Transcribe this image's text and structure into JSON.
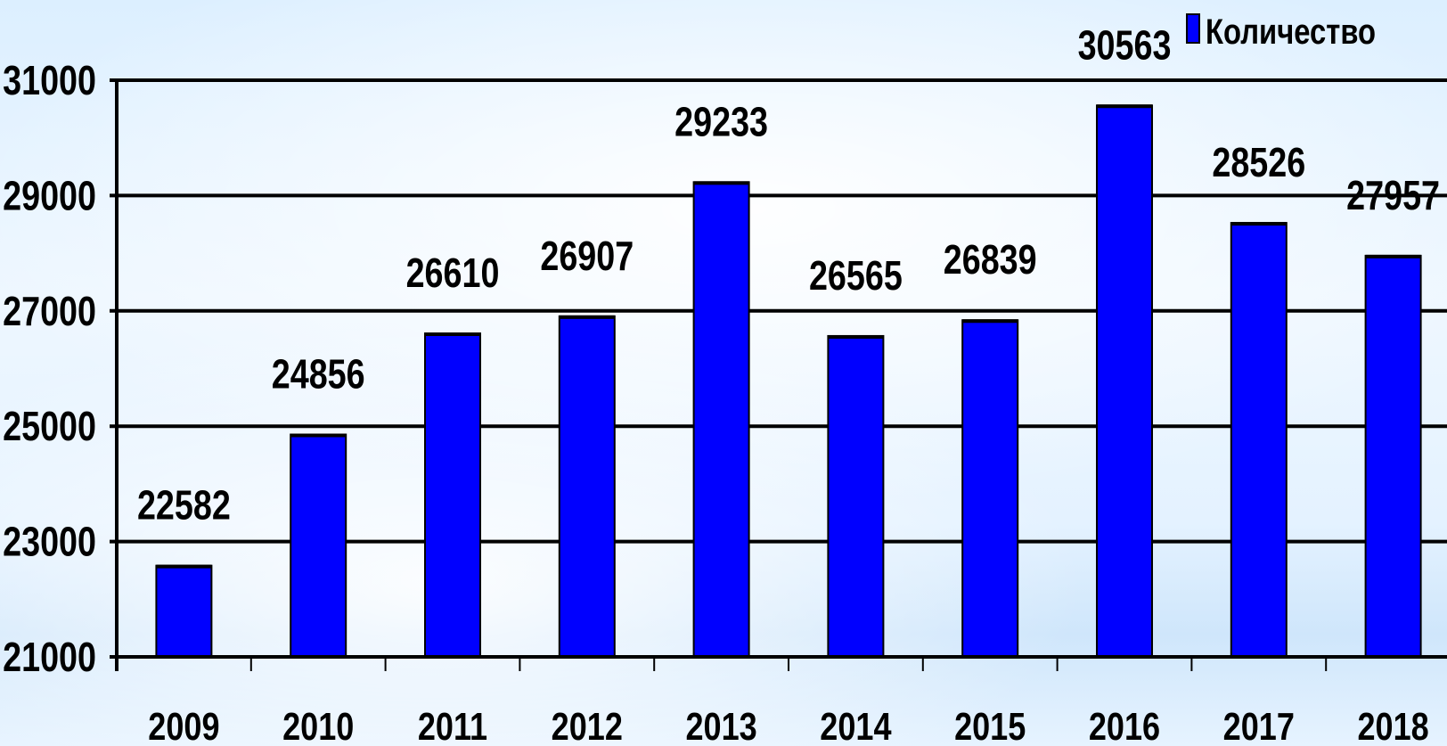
{
  "chart_data": {
    "type": "bar",
    "categories": [
      "2009",
      "2010",
      "2011",
      "2012",
      "2013",
      "2014",
      "2015",
      "2016",
      "2017",
      "2018"
    ],
    "series": [
      {
        "name": "Количество",
        "values": [
          22582,
          24856,
          26610,
          26907,
          29233,
          26565,
          26839,
          30563,
          28526,
          27957
        ],
        "color": "#0000ff"
      }
    ],
    "data_labels": [
      "22582",
      "24856",
      "26610",
      "26907",
      "29233",
      "26565",
      "26839",
      "30563",
      "28526",
      "27957"
    ],
    "y_ticks": [
      "21000",
      "23000",
      "25000",
      "27000",
      "29000",
      "31000"
    ],
    "ylim": [
      21000,
      31000
    ],
    "grid": true,
    "legend": {
      "position": "top-right",
      "entries": [
        "Количество"
      ]
    },
    "colors": {
      "bar": "#0000ff",
      "grid": "#000000",
      "text": "#000000"
    }
  }
}
